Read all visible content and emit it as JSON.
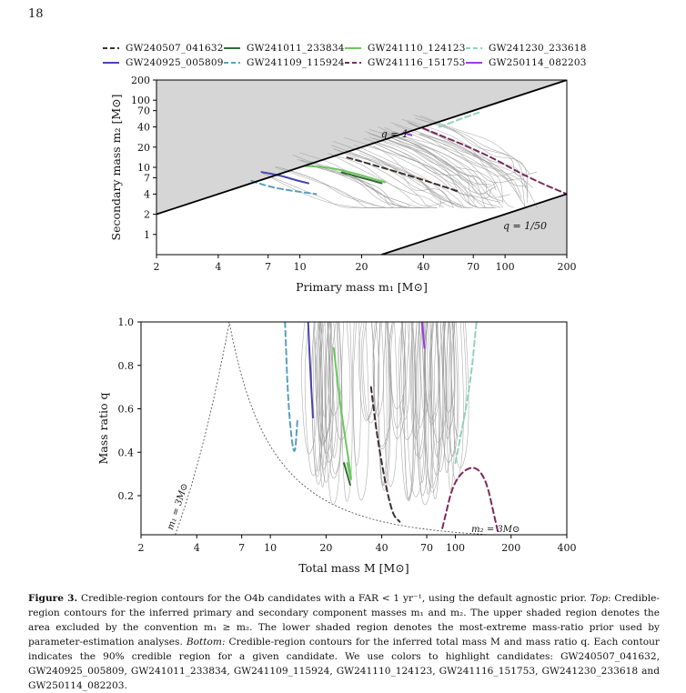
{
  "page_number": "18",
  "colors": {
    "GW240507_041632": "#3b2f2f",
    "GW240925_005809": "#4b43b0",
    "GW241011_233834": "#356b35",
    "GW241109_115924": "#5a9fc0",
    "GW241110_124123": "#6cc760",
    "GW241116_151753": "#7a2a5c",
    "GW241230_233618": "#8fd3bd",
    "GW250114_082203": "#9b3ce6",
    "background_contours": "#9a9a9a",
    "excluded_region": "#d6d6d6"
  },
  "legend": [
    {
      "name": "GW240507_041632",
      "style": "dashed"
    },
    {
      "name": "GW241011_233834",
      "style": "solid"
    },
    {
      "name": "GW241110_124123",
      "style": "solid"
    },
    {
      "name": "GW241230_233618",
      "style": "dashed"
    },
    {
      "name": "GW240925_005809",
      "style": "solid"
    },
    {
      "name": "GW241109_115924",
      "style": "dashed"
    },
    {
      "name": "GW241116_151753",
      "style": "dashed"
    },
    {
      "name": "GW250114_082203",
      "style": "solid"
    }
  ],
  "chart_data": [
    {
      "type": "line",
      "panel": "top",
      "xlabel": "Primary mass m₁ [M⊙]",
      "ylabel": "Secondary mass m₂ [M⊙]",
      "xscale": "log",
      "yscale": "log",
      "xlim": [
        2,
        200
      ],
      "ylim": [
        0.5,
        200
      ],
      "xticks": [
        "2",
        "4",
        "7",
        "10",
        "20",
        "40",
        "70",
        "100",
        "200"
      ],
      "yticks": [
        "1",
        "2",
        "4",
        "7",
        "10",
        "20",
        "40",
        "70",
        "100",
        "200"
      ],
      "annotations": [
        "q = 1",
        "q = 1/50"
      ],
      "boundaries": [
        {
          "label": "q = 1",
          "points": [
            [
              2,
              2
            ],
            [
              200,
              200
            ]
          ]
        },
        {
          "label": "q = 1/50",
          "points": [
            [
              25,
              0.5
            ],
            [
              200,
              4
            ]
          ]
        }
      ],
      "series": [
        {
          "name": "GW240925_005809",
          "x": [
            6.5,
            8,
            9.6,
            11
          ],
          "y": [
            8.5,
            7.6,
            6.4,
            5.8
          ]
        },
        {
          "name": "GW241109_115924",
          "x": [
            5.8,
            7,
            9,
            12
          ],
          "y": [
            6.3,
            5.2,
            4.5,
            4.0
          ]
        },
        {
          "name": "GW241011_233834",
          "x": [
            16,
            20,
            25
          ],
          "y": [
            8.4,
            7.0,
            5.8
          ]
        },
        {
          "name": "GW241110_124123",
          "x": [
            10.5,
            14,
            19,
            26
          ],
          "y": [
            10.5,
            10,
            8,
            6
          ]
        },
        {
          "name": "GW240507_041632",
          "x": [
            17,
            25,
            40,
            60
          ],
          "y": [
            14,
            10,
            6.5,
            4.3
          ]
        },
        {
          "name": "GW241116_151753",
          "x": [
            40,
            80,
            130,
            200
          ],
          "y": [
            38,
            16,
            7,
            4
          ]
        },
        {
          "name": "GW241230_233618",
          "x": [
            48,
            60,
            75
          ],
          "y": [
            40,
            52,
            66
          ]
        },
        {
          "name": "GW250114_082203",
          "x": [
            32,
            35
          ],
          "y": [
            33,
            30
          ]
        }
      ]
    },
    {
      "type": "line",
      "panel": "bottom",
      "xlabel": "Total mass M [M⊙]",
      "ylabel": "Mass ratio q",
      "xscale": "log",
      "xlim": [
        2,
        400
      ],
      "ylim": [
        0.02,
        1.0
      ],
      "xticks": [
        "2",
        "4",
        "7",
        "10",
        "20",
        "40",
        "70",
        "100",
        "200",
        "400"
      ],
      "yticks": [
        "0.2",
        "0.4",
        "0.6",
        "0.8",
        "1.0"
      ],
      "annotations": [
        "m₁ = 3M⊙",
        "m₂ = 3M⊙"
      ],
      "series": [
        {
          "name": "GW241109_115924",
          "x": [
            12,
            12.5,
            13.5,
            14
          ],
          "y": [
            1.0,
            0.6,
            0.35,
            0.55
          ]
        },
        {
          "name": "GW240925_005809",
          "x": [
            16,
            16.5,
            17
          ],
          "y": [
            1.0,
            0.75,
            0.56
          ]
        },
        {
          "name": "GW241110_124123",
          "x": [
            22,
            24,
            28,
            26
          ],
          "y": [
            0.88,
            0.6,
            0.23,
            0.35
          ]
        },
        {
          "name": "GW241011_233834",
          "x": [
            25,
            27
          ],
          "y": [
            0.35,
            0.25
          ]
        },
        {
          "name": "GW240507_041632",
          "x": [
            35,
            38,
            45,
            50
          ],
          "y": [
            0.7,
            0.45,
            0.12,
            0.08
          ]
        },
        {
          "name": "GW250114_082203",
          "x": [
            66,
            68
          ],
          "y": [
            1.0,
            0.88
          ]
        },
        {
          "name": "GW241116_151753",
          "x": [
            85,
            100,
            140,
            170
          ],
          "y": [
            0.05,
            0.3,
            0.35,
            0.03
          ]
        },
        {
          "name": "GW241230_233618",
          "x": [
            100,
            120,
            130
          ],
          "y": [
            0.35,
            0.7,
            1.0
          ]
        }
      ]
    }
  ],
  "caption": {
    "label": "Figure 3.",
    "part1": "Credible-region contours for the O4b candidates with a FAR < 1 yr⁻¹, using the default agnostic prior.",
    "top_label": "Top",
    "part2": ": Credible-region contours for the inferred primary and secondary component masses m₁ and m₂. The upper shaded region denotes the area excluded by the convention m₁ ≥ m₂. The lower shaded region denotes the most-extreme mass-ratio prior used by parameter-estimation analyses.",
    "bottom_label": "Bottom:",
    "part3": "Credible-region contours for the inferred total mass M and mass ratio q. Each contour indicates the 90% credible region for a given candidate. We use colors to highlight candidates: GW240507_041632, GW240925_005809, GW241011_233834, GW241109_115924, GW241110_124123, GW241116_151753, GW241230_233618 and GW250114_082203."
  }
}
